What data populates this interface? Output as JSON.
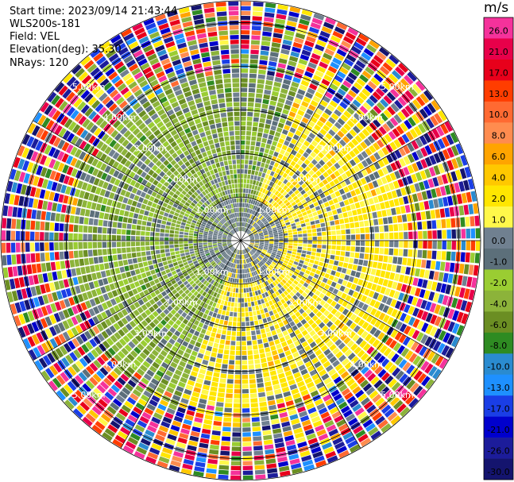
{
  "header": {
    "start_time": "Start time: 2023/09/14 21:43:44",
    "instrument": "WLS200s-181",
    "field": "Field: VEL",
    "elevation": "Elevation(deg): 35.30",
    "nrays": "NRays: 120"
  },
  "colorbar": {
    "unit": "m/s",
    "ticks": [
      "26.0",
      "21.0",
      "17.0",
      "13.0",
      "10.0",
      "8.0",
      "6.0",
      "4.0",
      "2.0",
      "1.0",
      "0.0",
      "-1.0",
      "-2.0",
      "-4.0",
      "-6.0",
      "-8.0",
      "-10.0",
      "-13.0",
      "-17.0",
      "-21.0",
      "-26.0",
      "-30.0"
    ],
    "colors": [
      "#f5329b",
      "#e8004a",
      "#e8001b",
      "#ff3d00",
      "#ff6a32",
      "#ff8c4f",
      "#ffa400",
      "#ffc800",
      "#ffe600",
      "#fff84a",
      "#708090",
      "#5c6f7a",
      "#9acd32",
      "#8cb33a",
      "#6b8e23",
      "#2e8b22",
      "#2a8bd0",
      "#1e90ff",
      "#1a3ee6",
      "#0000cd",
      "#1c1c9a",
      "#14146e"
    ]
  },
  "chart_data": {
    "type": "heatmap",
    "subtype": "radar-ppi",
    "range_rings_km": [
      1,
      2,
      3,
      4,
      5
    ],
    "ring_labels": [
      "1.00km",
      "2.00km",
      "3.00km",
      "4.00km",
      "5.00km"
    ],
    "max_range_km": 5.5,
    "nrays": 120,
    "field": "VEL",
    "units": "m/s",
    "vmin": -30,
    "vmax": 30,
    "pattern": {
      "receding_sector_azimuth_deg": [
        20,
        200
      ],
      "receding_peak_mps": 2.0,
      "approaching_sector_azimuth_deg": [
        200,
        380
      ],
      "approaching_peak_mps": -4.0,
      "near_range_mps": 0.0,
      "noisy_beyond_km": 3.8
    }
  }
}
